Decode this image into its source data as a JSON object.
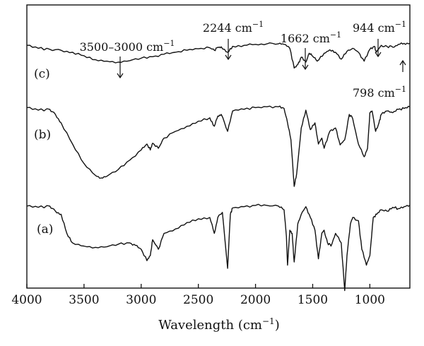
{
  "chart_data": {
    "type": "line",
    "title": "",
    "xlabel": "Wavelength (cm−1)",
    "xlabel_text": "Wavelength (cm",
    "xlabel_sup": "−1",
    "xlabel_close": ")",
    "ylabel": "",
    "xlim": [
      4000,
      650
    ],
    "x_reversed": true,
    "grid": false,
    "legend": "none",
    "xticks": [
      4000,
      3500,
      3000,
      2500,
      2000,
      1500,
      1000
    ],
    "xtick_labels": [
      "4000",
      "3500",
      "3000",
      "2500",
      "2000",
      "1500",
      "1000"
    ],
    "series": [
      {
        "name": "(c)",
        "label": "(c)",
        "offset": 0.82,
        "points": [
          [
            4000,
            0.94
          ],
          [
            3900,
            0.88
          ],
          [
            3800,
            0.86
          ],
          [
            3700,
            0.84
          ],
          [
            3600,
            0.8
          ],
          [
            3500,
            0.73
          ],
          [
            3400,
            0.65
          ],
          [
            3300,
            0.62
          ],
          [
            3200,
            0.6
          ],
          [
            3100,
            0.63
          ],
          [
            3000,
            0.68
          ],
          [
            2900,
            0.71
          ],
          [
            2800,
            0.76
          ],
          [
            2700,
            0.8
          ],
          [
            2600,
            0.84
          ],
          [
            2500,
            0.87
          ],
          [
            2400,
            0.89
          ],
          [
            2360,
            0.84
          ],
          [
            2330,
            0.9
          ],
          [
            2300,
            0.91
          ],
          [
            2244,
            0.8
          ],
          [
            2200,
            0.92
          ],
          [
            2100,
            0.94
          ],
          [
            2000,
            0.96
          ],
          [
            1900,
            0.97
          ],
          [
            1800,
            0.97
          ],
          [
            1750,
            0.96
          ],
          [
            1700,
            0.88
          ],
          [
            1662,
            0.48
          ],
          [
            1630,
            0.55
          ],
          [
            1600,
            0.7
          ],
          [
            1560,
            0.6
          ],
          [
            1530,
            0.78
          ],
          [
            1500,
            0.72
          ],
          [
            1460,
            0.62
          ],
          [
            1400,
            0.78
          ],
          [
            1350,
            0.85
          ],
          [
            1300,
            0.8
          ],
          [
            1250,
            0.66
          ],
          [
            1200,
            0.82
          ],
          [
            1150,
            0.88
          ],
          [
            1100,
            0.8
          ],
          [
            1050,
            0.62
          ],
          [
            1000,
            0.86
          ],
          [
            960,
            0.92
          ],
          [
            944,
            0.8
          ],
          [
            900,
            0.94
          ],
          [
            850,
            0.92
          ],
          [
            798,
            0.9
          ],
          [
            750,
            0.96
          ],
          [
            700,
            0.98
          ],
          [
            650,
            0.98
          ]
        ]
      },
      {
        "name": "(b)",
        "label": "(b)",
        "offset": 0.48,
        "points": [
          [
            4000,
            0.98
          ],
          [
            3900,
            0.95
          ],
          [
            3800,
            0.96
          ],
          [
            3750,
            0.9
          ],
          [
            3700,
            0.8
          ],
          [
            3600,
            0.55
          ],
          [
            3500,
            0.32
          ],
          [
            3400,
            0.18
          ],
          [
            3350,
            0.15
          ],
          [
            3300,
            0.17
          ],
          [
            3200,
            0.25
          ],
          [
            3100,
            0.36
          ],
          [
            3000,
            0.48
          ],
          [
            2950,
            0.55
          ],
          [
            2920,
            0.48
          ],
          [
            2900,
            0.56
          ],
          [
            2850,
            0.5
          ],
          [
            2800,
            0.62
          ],
          [
            2700,
            0.7
          ],
          [
            2600,
            0.76
          ],
          [
            2500,
            0.82
          ],
          [
            2400,
            0.86
          ],
          [
            2360,
            0.76
          ],
          [
            2330,
            0.88
          ],
          [
            2300,
            0.9
          ],
          [
            2244,
            0.7
          ],
          [
            2200,
            0.94
          ],
          [
            2100,
            0.96
          ],
          [
            2000,
            0.98
          ],
          [
            1900,
            0.99
          ],
          [
            1800,
            0.99
          ],
          [
            1750,
            0.97
          ],
          [
            1720,
            0.8
          ],
          [
            1690,
            0.6
          ],
          [
            1662,
            0.05
          ],
          [
            1640,
            0.2
          ],
          [
            1600,
            0.74
          ],
          [
            1560,
            0.95
          ],
          [
            1520,
            0.72
          ],
          [
            1480,
            0.8
          ],
          [
            1450,
            0.55
          ],
          [
            1420,
            0.62
          ],
          [
            1400,
            0.5
          ],
          [
            1350,
            0.7
          ],
          [
            1300,
            0.74
          ],
          [
            1260,
            0.54
          ],
          [
            1220,
            0.6
          ],
          [
            1180,
            0.9
          ],
          [
            1150,
            0.85
          ],
          [
            1100,
            0.55
          ],
          [
            1050,
            0.4
          ],
          [
            1020,
            0.5
          ],
          [
            1000,
            0.92
          ],
          [
            980,
            0.94
          ],
          [
            950,
            0.7
          ],
          [
            920,
            0.8
          ],
          [
            900,
            0.9
          ],
          [
            850,
            0.94
          ],
          [
            800,
            0.92
          ],
          [
            750,
            0.96
          ],
          [
            700,
            0.97
          ],
          [
            650,
            0.99
          ]
        ]
      },
      {
        "name": "(a)",
        "label": "(a)",
        "offset": 0.0,
        "points": [
          [
            4000,
            0.98
          ],
          [
            3900,
            0.96
          ],
          [
            3800,
            0.98
          ],
          [
            3750,
            0.9
          ],
          [
            3700,
            0.85
          ],
          [
            3650,
            0.55
          ],
          [
            3600,
            0.4
          ],
          [
            3500,
            0.35
          ],
          [
            3400,
            0.33
          ],
          [
            3300,
            0.34
          ],
          [
            3200,
            0.38
          ],
          [
            3100,
            0.4
          ],
          [
            3050,
            0.36
          ],
          [
            3000,
            0.3
          ],
          [
            2950,
            0.12
          ],
          [
            2920,
            0.2
          ],
          [
            2900,
            0.45
          ],
          [
            2850,
            0.3
          ],
          [
            2800,
            0.55
          ],
          [
            2700,
            0.62
          ],
          [
            2600,
            0.72
          ],
          [
            2500,
            0.78
          ],
          [
            2400,
            0.8
          ],
          [
            2360,
            0.55
          ],
          [
            2330,
            0.8
          ],
          [
            2290,
            0.88
          ],
          [
            2244,
            0.0
          ],
          [
            2220,
            0.85
          ],
          [
            2200,
            0.95
          ],
          [
            2100,
            0.97
          ],
          [
            2000,
            0.99
          ],
          [
            1900,
            0.99
          ],
          [
            1800,
            0.98
          ],
          [
            1750,
            0.92
          ],
          [
            1730,
            0.5
          ],
          [
            1720,
            0.05
          ],
          [
            1700,
            0.6
          ],
          [
            1680,
            0.55
          ],
          [
            1662,
            0.1
          ],
          [
            1630,
            0.7
          ],
          [
            1600,
            0.85
          ],
          [
            1560,
            0.97
          ],
          [
            1520,
            0.8
          ],
          [
            1480,
            0.6
          ],
          [
            1450,
            0.15
          ],
          [
            1420,
            0.55
          ],
          [
            1400,
            0.6
          ],
          [
            1370,
            0.4
          ],
          [
            1340,
            0.35
          ],
          [
            1300,
            0.55
          ],
          [
            1250,
            0.4
          ],
          [
            1220,
            -0.35
          ],
          [
            1200,
            0.2
          ],
          [
            1170,
            0.7
          ],
          [
            1150,
            0.8
          ],
          [
            1100,
            0.75
          ],
          [
            1070,
            0.3
          ],
          [
            1030,
            0.05
          ],
          [
            1000,
            0.2
          ],
          [
            970,
            0.8
          ],
          [
            940,
            0.85
          ],
          [
            900,
            0.92
          ],
          [
            850,
            0.9
          ],
          [
            800,
            0.96
          ],
          [
            750,
            0.94
          ],
          [
            700,
            0.97
          ],
          [
            650,
            0.99
          ]
        ]
      }
    ],
    "annotations": [
      {
        "text": "3500–3000 cm",
        "sup": "−1",
        "x": 3200,
        "series": "(c)"
      },
      {
        "text": "2244 cm",
        "sup": "−1",
        "x": 2244,
        "series": "(c)"
      },
      {
        "text": "1662 cm",
        "sup": "−1",
        "x": 1600,
        "series": "(c)"
      },
      {
        "text": "944 cm",
        "sup": "−1",
        "x": 944,
        "series": "(c)"
      },
      {
        "text": "798 cm",
        "sup": "−1",
        "x": 700,
        "series": "(c)"
      }
    ]
  }
}
